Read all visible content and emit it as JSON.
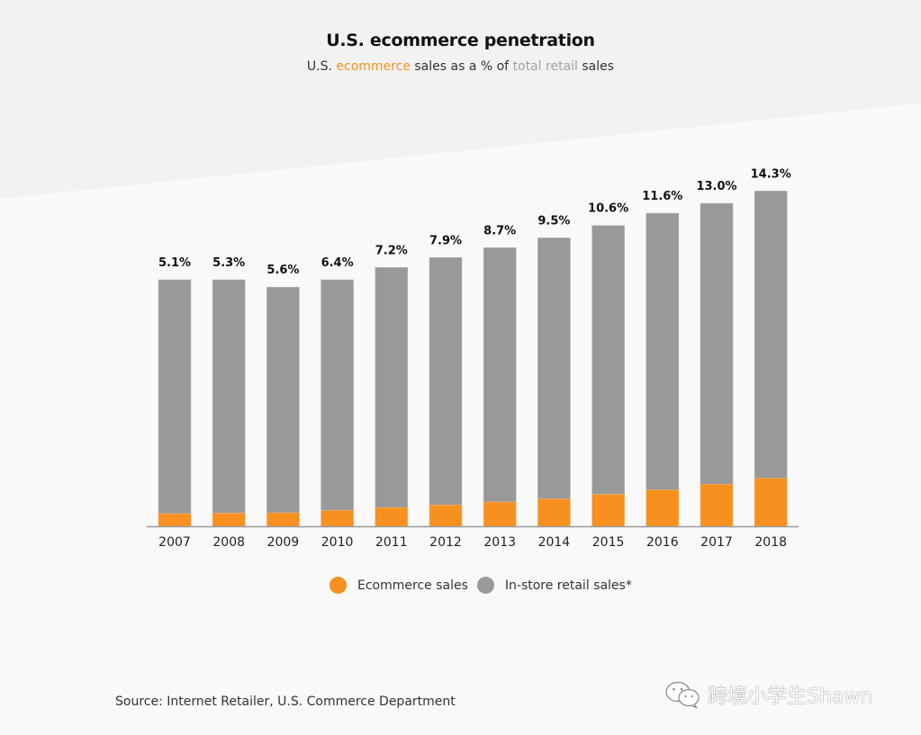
{
  "colors": {
    "ecommerce": "#f7901e",
    "instore": "#999999",
    "axis": "#999999",
    "background_top": "#f2f2f2",
    "background": "#f9f9f9"
  },
  "header": {
    "title": "U.S. ecommerce penetration",
    "subtitle_parts": [
      "U.S. ",
      "ecommerce",
      " sales as a % of ",
      "total retail",
      " sales"
    ]
  },
  "chart_data": {
    "type": "bar",
    "stacked": true,
    "title": "U.S. ecommerce penetration",
    "subtitle": "U.S. ecommerce sales as a % of total retail sales",
    "xlabel": "",
    "ylabel": "",
    "grid": false,
    "legend_position": "bottom-center",
    "categories": [
      "2007",
      "2008",
      "2009",
      "2010",
      "2011",
      "2012",
      "2013",
      "2014",
      "2015",
      "2016",
      "2017",
      "2018"
    ],
    "data_labels": [
      "5.1%",
      "5.3%",
      "5.6%",
      "6.4%",
      "7.2%",
      "7.9%",
      "8.7%",
      "9.5%",
      "10.6%",
      "11.6%",
      "13.0%",
      "14.3%"
    ],
    "ecommerce_share_pct": [
      5.1,
      5.3,
      5.6,
      6.4,
      7.2,
      7.9,
      8.7,
      9.5,
      10.6,
      11.6,
      13.0,
      14.3
    ],
    "total_retail_index": [
      100,
      100,
      97,
      100,
      105,
      109,
      113,
      117,
      122,
      127,
      131,
      136
    ],
    "series": [
      {
        "name": "Ecommerce sales",
        "key": "ecommerce"
      },
      {
        "name": "In-store retail sales*",
        "key": "instore"
      }
    ]
  },
  "legend": {
    "items": [
      {
        "label": "Ecommerce sales",
        "color": "#f7901e"
      },
      {
        "label": "In-store retail sales*",
        "color": "#999999"
      }
    ]
  },
  "footer": {
    "source": "Source: Internet Retailer, U.S. Commerce Department",
    "watermark": "跨境小学生Shawn",
    "watermark_icon": "wechat-icon"
  }
}
